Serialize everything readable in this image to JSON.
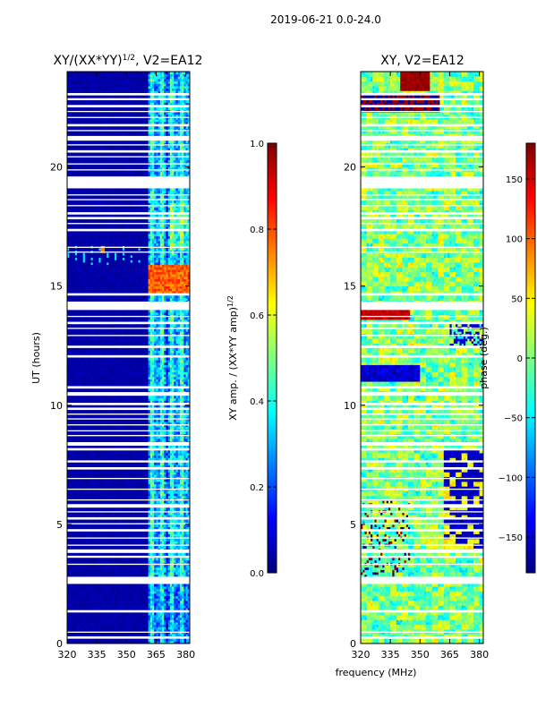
{
  "suptitle": "2019-06-21 0.0-24.0",
  "xlabel_shared": "frequency (MHz)",
  "colors": {
    "jet": [
      "#00007f",
      "#0000ff",
      "#007fff",
      "#00ffff",
      "#7fff7f",
      "#ffff00",
      "#ff7f00",
      "#ff0000",
      "#7f0000"
    ],
    "flag": "#ffffff"
  },
  "chart_data": [
    {
      "type": "heatmap",
      "title_prefix": "XY/(XX*YY)",
      "title_exponent": "1/2",
      "title_suffix": ", V2=EA12",
      "ylabel": "UT (hours)",
      "xlim": [
        320,
        382
      ],
      "ylim": [
        0,
        24
      ],
      "x_ticks": [
        320,
        335,
        350,
        365,
        380
      ],
      "x_tick_labels": [
        "320",
        "335",
        "350",
        "365",
        "380"
      ],
      "y_ticks": [
        0,
        5,
        10,
        15,
        20
      ],
      "y_tick_labels": [
        "0",
        "5",
        "10",
        "15",
        "20"
      ],
      "colorbar": {
        "label_prefix": "XY amp. / (XX*YY amp)",
        "label_exponent": "1/2",
        "range": [
          0.0,
          1.0
        ],
        "ticks": [
          0.0,
          0.2,
          0.4,
          0.6,
          0.8,
          1.0
        ],
        "tick_labels": [
          "0.0",
          "0.2",
          "0.4",
          "0.6",
          "0.8",
          "1.0"
        ]
      },
      "notes": "Low values (~0.0-0.05) for 320-361 MHz; elevated values (~0.3-0.6) in vertical bands 362-382 MHz; peak ~0.75-0.85 near 14.8-15.8 UT around 362-380 MHz; isolated bright point ~0.75 near 338 MHz at ~16.5 UT."
    },
    {
      "type": "heatmap",
      "title": "XY, V2=EA12",
      "xlim": [
        320,
        382
      ],
      "ylim": [
        0,
        24
      ],
      "x_ticks": [
        320,
        335,
        350,
        365,
        380
      ],
      "x_tick_labels": [
        "320",
        "335",
        "350",
        "365",
        "380"
      ],
      "y_ticks": [
        0,
        5,
        10,
        15,
        20
      ],
      "y_tick_labels": [
        "0",
        "5",
        "10",
        "15",
        "20"
      ],
      "colorbar": {
        "label": "phase (deg.)",
        "range": [
          -180,
          180
        ],
        "ticks": [
          -150,
          -100,
          -50,
          0,
          50,
          100,
          150
        ],
        "tick_labels": [
          "−150",
          "−100",
          "−50",
          "0",
          "50",
          "100",
          "150"
        ]
      },
      "notes": "Noisy phase field mostly between -60 and +60 deg; extended region ~-120 to -170 deg near 362-382 MHz for 4-8 UT; scattered near ±180 deg patches around 11-14 UT and 22-23 UT."
    }
  ],
  "flagged_ut_rows": [
    [
      0.25,
      0.3
    ],
    [
      0.45,
      0.5
    ],
    [
      1.35,
      1.4
    ],
    [
      2.55,
      2.8
    ],
    [
      3.3,
      3.35
    ],
    [
      3.6,
      3.65
    ],
    [
      3.85,
      3.95
    ],
    [
      4.1,
      4.15
    ],
    [
      4.4,
      4.45
    ],
    [
      4.75,
      4.8
    ],
    [
      5.0,
      5.05
    ],
    [
      5.25,
      5.3
    ],
    [
      5.5,
      5.55
    ],
    [
      5.75,
      5.85
    ],
    [
      6.0,
      6.05
    ],
    [
      6.45,
      6.5
    ],
    [
      6.9,
      6.95
    ],
    [
      7.35,
      7.4
    ],
    [
      7.6,
      7.65
    ],
    [
      8.15,
      8.2
    ],
    [
      8.35,
      8.45
    ],
    [
      8.7,
      8.75
    ],
    [
      8.9,
      8.95
    ],
    [
      9.15,
      9.2
    ],
    [
      9.4,
      9.45
    ],
    [
      9.6,
      9.65
    ],
    [
      9.85,
      9.9
    ],
    [
      10.05,
      10.1
    ],
    [
      10.4,
      10.55
    ],
    [
      10.7,
      10.8
    ],
    [
      12.0,
      12.1
    ],
    [
      12.45,
      12.5
    ],
    [
      12.9,
      12.95
    ],
    [
      13.2,
      13.25
    ],
    [
      13.45,
      13.5
    ],
    [
      13.7,
      13.75
    ],
    [
      14.0,
      14.35
    ],
    [
      14.65,
      14.7
    ],
    [
      16.4,
      16.45
    ],
    [
      16.6,
      16.65
    ],
    [
      17.35,
      17.4
    ],
    [
      17.6,
      17.65
    ],
    [
      17.85,
      17.9
    ],
    [
      18.05,
      18.1
    ],
    [
      18.35,
      18.4
    ],
    [
      18.6,
      18.65
    ],
    [
      18.8,
      18.85
    ],
    [
      19.15,
      19.6
    ],
    [
      19.85,
      19.9
    ],
    [
      20.1,
      20.15
    ],
    [
      20.4,
      20.45
    ],
    [
      20.6,
      20.7
    ],
    [
      20.9,
      20.95
    ],
    [
      21.15,
      21.3
    ],
    [
      21.5,
      21.55
    ],
    [
      21.75,
      21.8
    ],
    [
      22.05,
      22.1
    ],
    [
      22.3,
      22.35
    ],
    [
      22.55,
      22.6
    ],
    [
      22.8,
      22.85
    ],
    [
      23.05,
      23.1
    ]
  ]
}
